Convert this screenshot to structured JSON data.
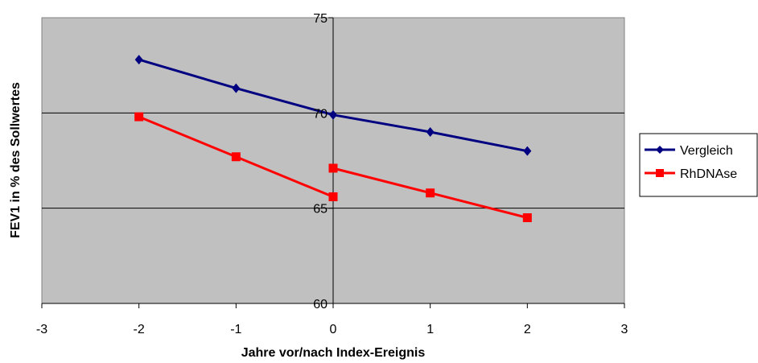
{
  "chart_data": {
    "type": "line",
    "title": "",
    "xlabel": "Jahre vor/nach Index-Ereignis",
    "ylabel": "FEV1 in % des Sollwertes",
    "xlim": [
      -3,
      3
    ],
    "ylim": [
      60,
      75
    ],
    "x_ticks": [
      -3,
      -2,
      -1,
      0,
      1,
      2,
      3
    ],
    "y_ticks": [
      60,
      65,
      70,
      75
    ],
    "grid": "horizontal major gridlines",
    "legend_position": "right",
    "plot_background": "#c0c0c0",
    "series": [
      {
        "name": "Vergleich",
        "color": "#000080",
        "marker": "diamond",
        "x": [
          -2,
          -1,
          0,
          1,
          2
        ],
        "y": [
          72.8,
          71.3,
          69.9,
          69.0,
          68.0
        ]
      },
      {
        "name": "RhDNAse",
        "color": "#ff0000",
        "marker": "square",
        "segments": [
          {
            "x": [
              -2,
              -1,
              0
            ],
            "y": [
              69.8,
              67.7,
              65.6
            ]
          },
          {
            "x": [
              0,
              1,
              2
            ],
            "y": [
              67.1,
              65.8,
              64.5
            ]
          }
        ]
      }
    ]
  }
}
